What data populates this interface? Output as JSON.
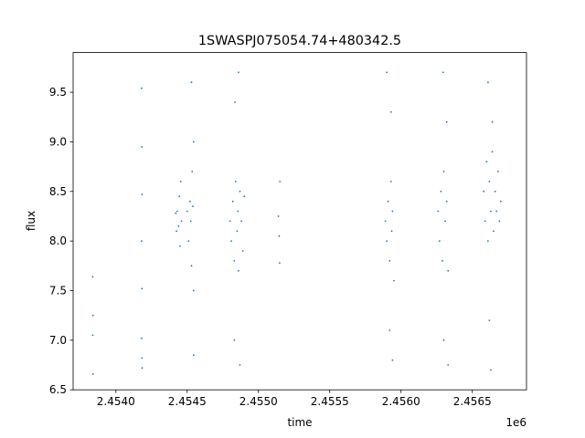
{
  "chart_data": {
    "type": "scatter",
    "title": "1SWASPJ075054.74+480342.5",
    "xlabel": "time",
    "ylabel": "flux",
    "x_offset_label": "1e6",
    "xlim": [
      2453700,
      2456880
    ],
    "ylim": [
      6.5,
      9.9
    ],
    "x_ticks": [
      2454000,
      2454500,
      2455000,
      2455500,
      2456000,
      2456500
    ],
    "x_tick_labels": [
      "2.4540",
      "2.4545",
      "2.4550",
      "2.4555",
      "2.4560",
      "2.4565"
    ],
    "y_ticks": [
      6.5,
      7.0,
      7.5,
      8.0,
      8.5,
      9.0,
      9.5
    ],
    "y_tick_labels": [
      "6.5",
      "7.0",
      "7.5",
      "8.0",
      "8.5",
      "9.0",
      "9.5"
    ],
    "grid": false,
    "marker_color": "#1f77b4",
    "series": [
      {
        "points": [
          [
            2453837,
            7.64
          ],
          [
            2453840,
            6.66
          ],
          [
            2453839,
            7.25
          ],
          [
            2453838,
            7.05
          ],
          [
            2454180,
            9.54
          ],
          [
            2454182,
            8.95
          ],
          [
            2454184,
            8.47
          ],
          [
            2454180,
            8.0
          ],
          [
            2454183,
            7.52
          ],
          [
            2454181,
            7.02
          ],
          [
            2454184,
            6.72
          ],
          [
            2454182,
            6.82
          ],
          [
            2454420,
            8.28
          ],
          [
            2454425,
            8.1
          ],
          [
            2454430,
            8.3
          ],
          [
            2454440,
            8.15
          ],
          [
            2454445,
            8.45
          ],
          [
            2454450,
            7.95
          ],
          [
            2454455,
            8.6
          ],
          [
            2454460,
            8.2
          ],
          [
            2454500,
            8.3
          ],
          [
            2454510,
            8.0
          ],
          [
            2454520,
            8.4
          ],
          [
            2454525,
            8.2
          ],
          [
            2454530,
            7.75
          ],
          [
            2454535,
            8.7
          ],
          [
            2454540,
            8.35
          ],
          [
            2454545,
            7.5
          ],
          [
            2454530,
            9.6
          ],
          [
            2454545,
            9.0
          ],
          [
            2454545,
            6.85
          ],
          [
            2454800,
            8.2
          ],
          [
            2454810,
            8.0
          ],
          [
            2454820,
            8.4
          ],
          [
            2454830,
            7.8
          ],
          [
            2454840,
            8.6
          ],
          [
            2454850,
            8.1
          ],
          [
            2454855,
            8.3
          ],
          [
            2454860,
            7.7
          ],
          [
            2454870,
            8.5
          ],
          [
            2454880,
            8.2
          ],
          [
            2454890,
            7.9
          ],
          [
            2454900,
            8.45
          ],
          [
            2454835,
            9.4
          ],
          [
            2454860,
            9.7
          ],
          [
            2454830,
            7.0
          ],
          [
            2454870,
            6.75
          ],
          [
            2455140,
            8.25
          ],
          [
            2455145,
            8.05
          ],
          [
            2455150,
            8.6
          ],
          [
            2455148,
            7.78
          ],
          [
            2455890,
            8.2
          ],
          [
            2455900,
            8.0
          ],
          [
            2455910,
            8.4
          ],
          [
            2455920,
            7.8
          ],
          [
            2455930,
            8.6
          ],
          [
            2455935,
            8.1
          ],
          [
            2455940,
            8.3
          ],
          [
            2455950,
            7.6
          ],
          [
            2455900,
            9.7
          ],
          [
            2455930,
            9.3
          ],
          [
            2455920,
            7.1
          ],
          [
            2455940,
            6.8
          ],
          [
            2456260,
            8.3
          ],
          [
            2456270,
            8.0
          ],
          [
            2456280,
            8.5
          ],
          [
            2456290,
            7.8
          ],
          [
            2456300,
            8.7
          ],
          [
            2456310,
            8.2
          ],
          [
            2456320,
            8.4
          ],
          [
            2456330,
            7.7
          ],
          [
            2456295,
            9.7
          ],
          [
            2456320,
            9.2
          ],
          [
            2456300,
            7.0
          ],
          [
            2456330,
            6.75
          ],
          [
            2456580,
            8.5
          ],
          [
            2456590,
            8.2
          ],
          [
            2456600,
            8.8
          ],
          [
            2456610,
            8.0
          ],
          [
            2456620,
            8.6
          ],
          [
            2456630,
            8.3
          ],
          [
            2456640,
            8.9
          ],
          [
            2456650,
            8.1
          ],
          [
            2456660,
            8.5
          ],
          [
            2456670,
            8.3
          ],
          [
            2456680,
            8.7
          ],
          [
            2456690,
            8.2
          ],
          [
            2456700,
            8.4
          ],
          [
            2456610,
            9.6
          ],
          [
            2456640,
            9.2
          ],
          [
            2456620,
            7.2
          ],
          [
            2456630,
            6.7
          ]
        ]
      }
    ]
  }
}
